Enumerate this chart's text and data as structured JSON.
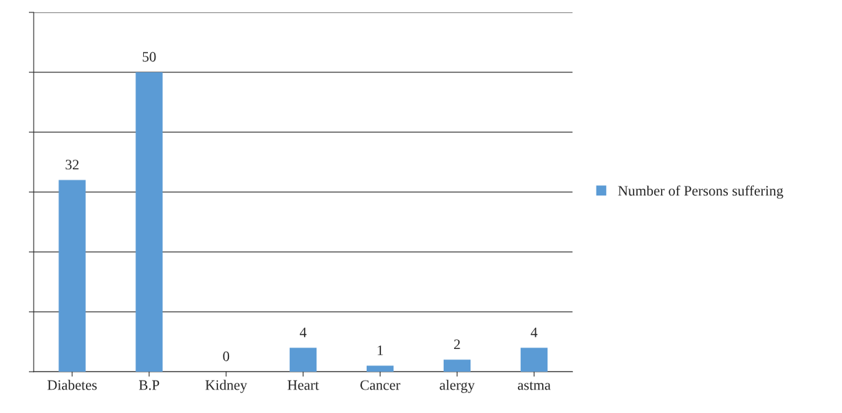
{
  "chart_data": {
    "type": "bar",
    "categories": [
      "Diabetes",
      "B.P",
      "Kidney",
      "Heart",
      "Cancer",
      "alergy",
      "astma"
    ],
    "series": [
      {
        "name": "Number of Persons suffering",
        "color": "#5b9bd5",
        "values": [
          32,
          50,
          0,
          4,
          1,
          2,
          4
        ]
      }
    ],
    "ylim": [
      0,
      60
    ],
    "yticks": [
      {
        "value": 0,
        "label": null
      },
      {
        "value": 10,
        "label": null
      },
      {
        "value": 20,
        "label": null
      },
      {
        "value": 30,
        "label": null
      },
      {
        "value": 40,
        "label": null
      },
      {
        "value": 50,
        "label": null
      },
      {
        "value": 60,
        "label": null
      }
    ],
    "grid": "y",
    "legend": "right",
    "data_labels": true,
    "tick_labels": "x"
  }
}
